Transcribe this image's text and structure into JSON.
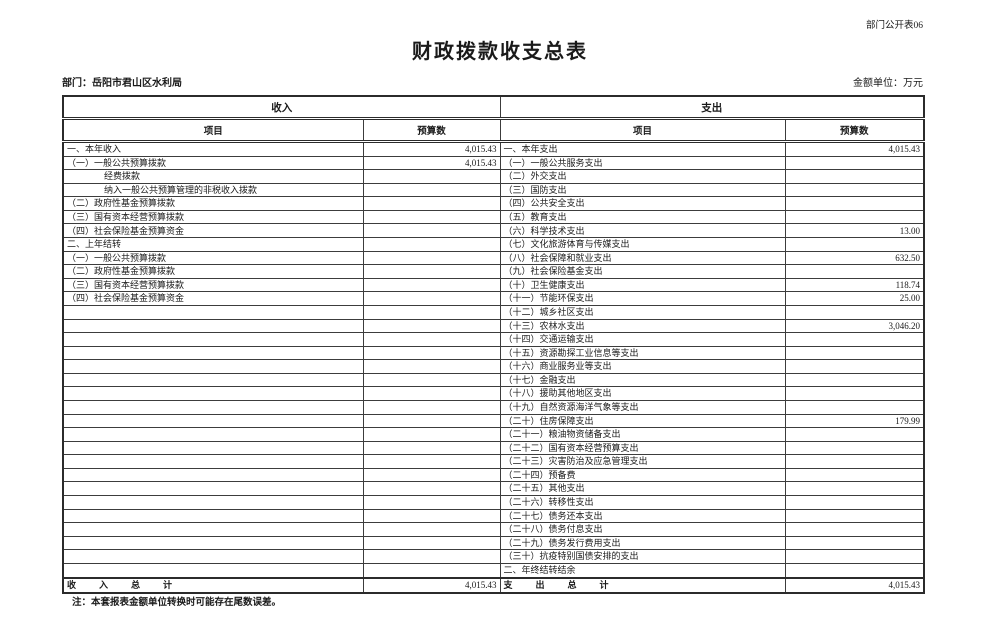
{
  "page": {
    "doc_code": "部门公开表06",
    "title": "财政拨款收支总表",
    "department": "部门：岳阳市君山区水利局",
    "unit": "金额单位：万元",
    "note": "注：本套报表金额单位转换时可能存在尾数误差。"
  },
  "table": {
    "income_section": "收入",
    "expense_section": "支出",
    "item_header": "项目",
    "budget_header": "预算数",
    "rows": [
      {
        "income": "一、本年收入",
        "income_val": "4,015.43",
        "indent": false,
        "expense": "一、本年支出",
        "expense_val": "4,015.43"
      },
      {
        "income": "（一）一般公共预算拨款",
        "income_val": "4,015.43",
        "indent": false,
        "expense": "（一）一般公共服务支出",
        "expense_val": ""
      },
      {
        "income": "经费拨款",
        "income_val": "",
        "indent": true,
        "expense": "（二）外交支出",
        "expense_val": ""
      },
      {
        "income": "纳入一般公共预算管理的非税收入拨款",
        "income_val": "",
        "indent": true,
        "expense": "（三）国防支出",
        "expense_val": ""
      },
      {
        "income": "（二）政府性基金预算拨款",
        "income_val": "",
        "indent": false,
        "expense": "（四）公共安全支出",
        "expense_val": ""
      },
      {
        "income": "（三）国有资本经营预算拨款",
        "income_val": "",
        "indent": false,
        "expense": "（五）教育支出",
        "expense_val": ""
      },
      {
        "income": "（四）社会保险基金预算资金",
        "income_val": "",
        "indent": false,
        "expense": "（六）科学技术支出",
        "expense_val": "13.00"
      },
      {
        "income": "二、上年结转",
        "income_val": "",
        "indent": false,
        "expense": "（七）文化旅游体育与传媒支出",
        "expense_val": ""
      },
      {
        "income": "（一）一般公共预算拨款",
        "income_val": "",
        "indent": false,
        "expense": "（八）社会保障和就业支出",
        "expense_val": "632.50"
      },
      {
        "income": "（二）政府性基金预算拨款",
        "income_val": "",
        "indent": false,
        "expense": "（九）社会保险基金支出",
        "expense_val": ""
      },
      {
        "income": "（三）国有资本经营预算拨款",
        "income_val": "",
        "indent": false,
        "expense": "（十）卫生健康支出",
        "expense_val": "118.74"
      },
      {
        "income": "（四）社会保险基金预算资金",
        "income_val": "",
        "indent": false,
        "expense": "（十一）节能环保支出",
        "expense_val": "25.00"
      },
      {
        "income": "",
        "income_val": "",
        "indent": false,
        "expense": "（十二）城乡社区支出",
        "expense_val": ""
      },
      {
        "income": "",
        "income_val": "",
        "indent": false,
        "expense": "（十三）农林水支出",
        "expense_val": "3,046.20"
      },
      {
        "income": "",
        "income_val": "",
        "indent": false,
        "expense": "（十四）交通运输支出",
        "expense_val": ""
      },
      {
        "income": "",
        "income_val": "",
        "indent": false,
        "expense": "（十五）资源勘探工业信息等支出",
        "expense_val": ""
      },
      {
        "income": "",
        "income_val": "",
        "indent": false,
        "expense": "（十六）商业服务业等支出",
        "expense_val": ""
      },
      {
        "income": "",
        "income_val": "",
        "indent": false,
        "expense": "（十七）金融支出",
        "expense_val": ""
      },
      {
        "income": "",
        "income_val": "",
        "indent": false,
        "expense": "（十八）援助其他地区支出",
        "expense_val": ""
      },
      {
        "income": "",
        "income_val": "",
        "indent": false,
        "expense": "（十九）自然资源海洋气象等支出",
        "expense_val": ""
      },
      {
        "income": "",
        "income_val": "",
        "indent": false,
        "expense": "（二十）住房保障支出",
        "expense_val": "179.99"
      },
      {
        "income": "",
        "income_val": "",
        "indent": false,
        "expense": "（二十一）粮油物资储备支出",
        "expense_val": ""
      },
      {
        "income": "",
        "income_val": "",
        "indent": false,
        "expense": "（二十二）国有资本经营预算支出",
        "expense_val": ""
      },
      {
        "income": "",
        "income_val": "",
        "indent": false,
        "expense": "（二十三）灾害防治及应急管理支出",
        "expense_val": ""
      },
      {
        "income": "",
        "income_val": "",
        "indent": false,
        "expense": "（二十四）预备费",
        "expense_val": ""
      },
      {
        "income": "",
        "income_val": "",
        "indent": false,
        "expense": "（二十五）其他支出",
        "expense_val": ""
      },
      {
        "income": "",
        "income_val": "",
        "indent": false,
        "expense": "（二十六）转移性支出",
        "expense_val": ""
      },
      {
        "income": "",
        "income_val": "",
        "indent": false,
        "expense": "（二十七）债务还本支出",
        "expense_val": ""
      },
      {
        "income": "",
        "income_val": "",
        "indent": false,
        "expense": "（二十八）债务付息支出",
        "expense_val": ""
      },
      {
        "income": "",
        "income_val": "",
        "indent": false,
        "expense": "（二十九）债务发行费用支出",
        "expense_val": ""
      },
      {
        "income": "",
        "income_val": "",
        "indent": false,
        "expense": "（三十）抗疫特别国债安排的支出",
        "expense_val": ""
      },
      {
        "income": "",
        "income_val": "",
        "indent": false,
        "expense": "二、年终结转结余",
        "expense_val": ""
      }
    ],
    "total": {
      "income_label": "收入总计",
      "income_value": "4,015.43",
      "expense_label": "支出总计",
      "expense_value": "4,015.43"
    }
  }
}
